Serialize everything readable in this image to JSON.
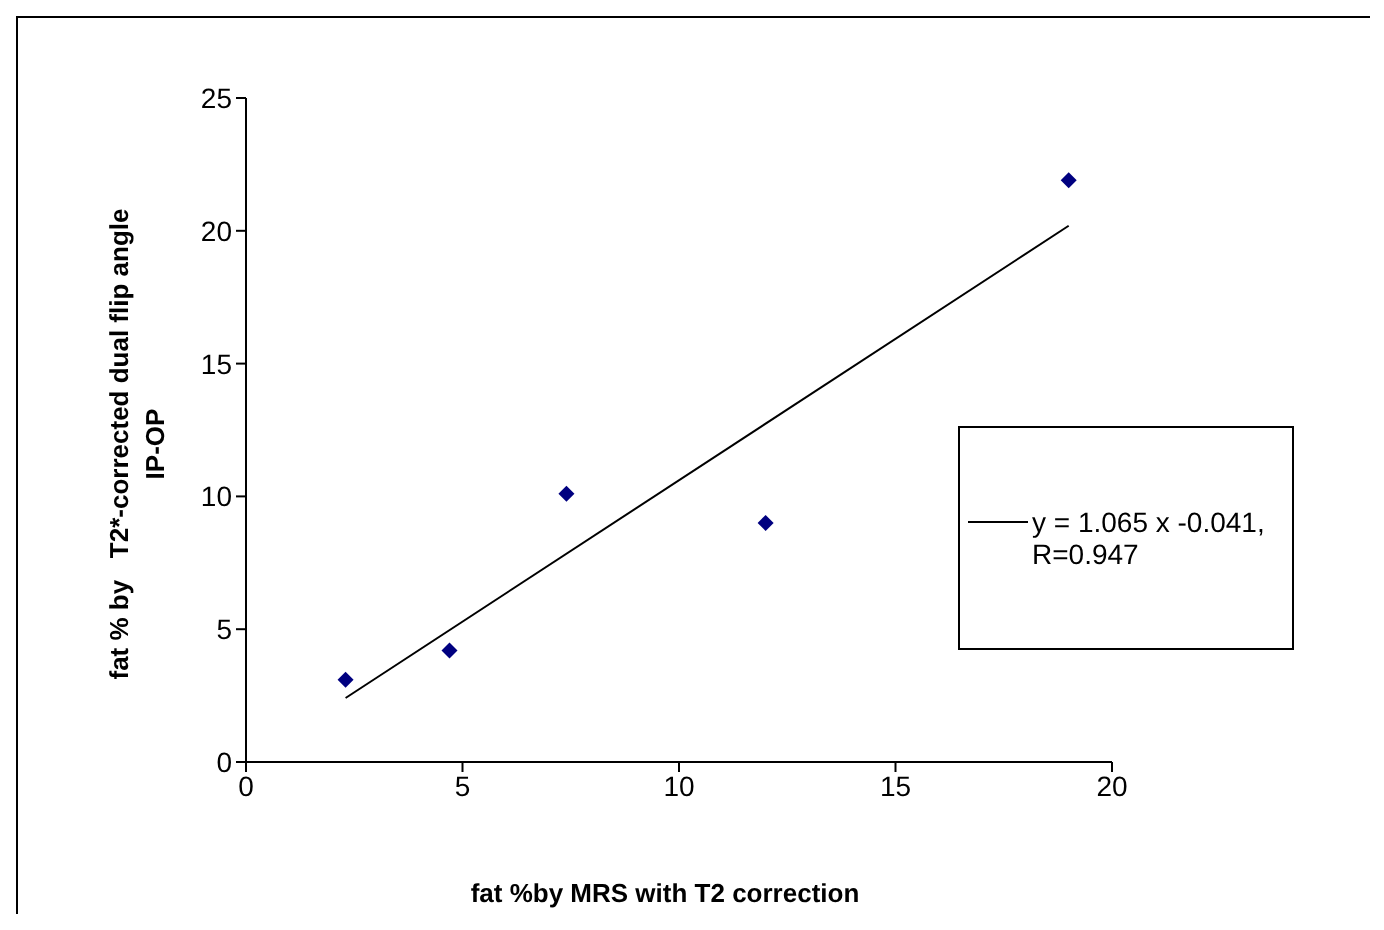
{
  "chart_data": {
    "type": "scatter",
    "xlabel": "fat %by MRS with T2 correction",
    "ylabel": "fat % by   T2*-corrected dual flip angle IP-OP",
    "x": [
      2.3,
      4.7,
      7.4,
      12.0,
      19.0
    ],
    "series": [
      {
        "color": "#000080",
        "values": [
          3.1,
          4.2,
          10.1,
          9.0,
          21.9
        ],
        "marker": "diamond"
      },
      {
        "type": "line",
        "name": "y = 1.065 x -0.041, R=0.947",
        "color": "#000000",
        "x": [
          2.3,
          19.0
        ],
        "values": [
          2.41,
          20.19
        ],
        "marker": "none",
        "line_style": "solid"
      }
    ],
    "xlim": [
      0,
      20
    ],
    "xticks": [
      0,
      5,
      10,
      15,
      20
    ],
    "ylim": [
      0,
      25
    ],
    "yticks": [
      0,
      5,
      10,
      15,
      20,
      25
    ],
    "grid": false,
    "legend": "right"
  }
}
